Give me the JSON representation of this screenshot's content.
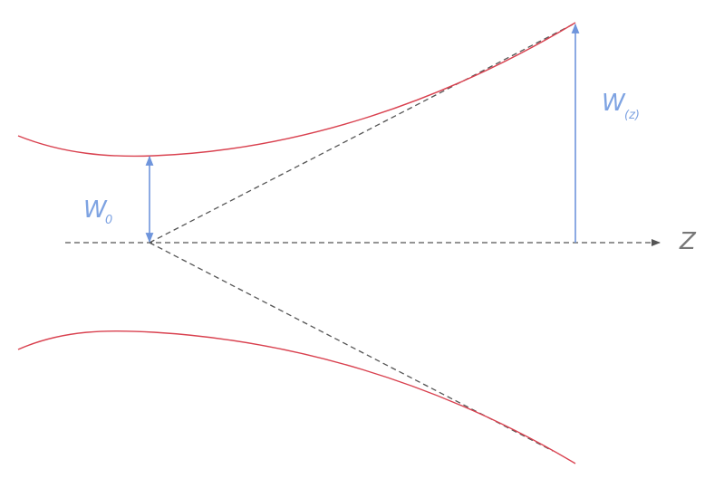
{
  "labels": {
    "waist": {
      "symbol": "W",
      "subscript": "0"
    },
    "radius": {
      "symbol": "W",
      "subscript": "(z)"
    },
    "axis": "Z"
  }
}
